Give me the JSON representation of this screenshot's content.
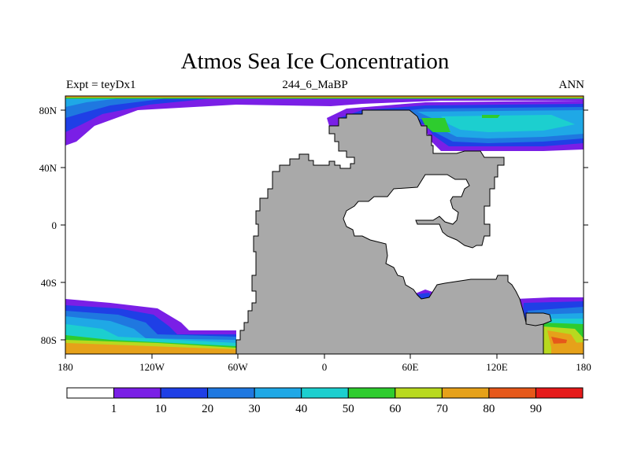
{
  "title": "Atmos Sea Ice Concentration",
  "subtitle_left": "Expt = teyDx1",
  "subtitle_center": "244_6_MaBP",
  "subtitle_right": "ANN",
  "x_ticks": [
    "180",
    "120W",
    "60W",
    "0",
    "60E",
    "120E",
    "180"
  ],
  "y_ticks": [
    "80N",
    "40N",
    "0",
    "40S",
    "80S"
  ],
  "colorbar": {
    "colors": [
      "#ffffff",
      "#7a1fe6",
      "#1f3fe6",
      "#1f78e0",
      "#1fa8e6",
      "#1ccfcf",
      "#2ecc2e",
      "#b8d91f",
      "#e6a11a",
      "#e6581a",
      "#e61a1a"
    ],
    "labels": [
      "1",
      "10",
      "20",
      "30",
      "40",
      "50",
      "60",
      "70",
      "80",
      "90"
    ]
  },
  "land_color": "#a9a9a9"
}
